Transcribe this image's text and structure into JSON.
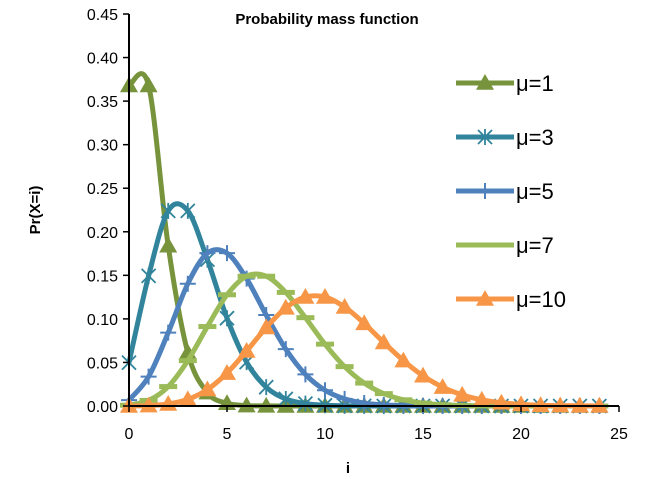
{
  "chart_data": {
    "type": "line",
    "title": "Probability mass function",
    "xlabel": "i",
    "ylabel": "Pr(X=i)",
    "xlim": [
      0,
      25
    ],
    "ylim": [
      0,
      0.45
    ],
    "xticks": [
      "0",
      "5",
      "10",
      "15",
      "20",
      "25"
    ],
    "yticks": [
      "0.00",
      "0.05",
      "0.10",
      "0.15",
      "0.20",
      "0.25",
      "0.30",
      "0.35",
      "0.40",
      "0.45"
    ],
    "x": [
      0,
      1,
      2,
      3,
      4,
      5,
      6,
      7,
      8,
      9,
      10,
      11,
      12,
      13,
      14,
      15,
      16,
      17,
      18,
      19,
      20,
      21,
      22,
      23,
      24
    ],
    "grid": false,
    "legend_position": "right",
    "series": [
      {
        "name": "μ=1",
        "color": "#77933C",
        "marker": "triangle",
        "values": [
          0.3679,
          0.3679,
          0.1839,
          0.0613,
          0.0153,
          0.0031,
          0.0005,
          0.0001,
          0,
          0,
          0,
          0,
          0,
          0,
          0,
          0,
          0,
          0,
          0,
          0,
          0,
          0,
          0,
          0,
          0
        ]
      },
      {
        "name": "μ=3",
        "color": "#31849B",
        "marker": "asterisk",
        "values": [
          0.0498,
          0.1494,
          0.224,
          0.224,
          0.168,
          0.1008,
          0.0504,
          0.0216,
          0.0081,
          0.0027,
          0.0008,
          0.0002,
          0.0001,
          0,
          0,
          0,
          0,
          0,
          0,
          0,
          0,
          0,
          0,
          0,
          0
        ]
      },
      {
        "name": "μ=5",
        "color": "#4F81BD",
        "marker": "plus",
        "values": [
          0.0067,
          0.0337,
          0.0842,
          0.1404,
          0.1755,
          0.1755,
          0.1462,
          0.1044,
          0.0653,
          0.0363,
          0.0181,
          0.0082,
          0.0034,
          0.0013,
          0.0005,
          0.0002,
          0,
          0,
          0,
          0,
          0,
          0,
          0,
          0,
          0
        ]
      },
      {
        "name": "μ=7",
        "color": "#9BBB59",
        "marker": "dash",
        "values": [
          0.0009,
          0.0064,
          0.0223,
          0.0521,
          0.0912,
          0.1277,
          0.149,
          0.149,
          0.1304,
          0.1014,
          0.071,
          0.0452,
          0.0263,
          0.0142,
          0.0071,
          0.0033,
          0.0014,
          0.0006,
          0.0002,
          0.0001,
          0,
          0,
          0,
          0,
          0
        ]
      },
      {
        "name": "μ=10",
        "color": "#F79646",
        "marker": "triangle",
        "values": [
          0,
          0.0005,
          0.0023,
          0.0076,
          0.0189,
          0.0378,
          0.0631,
          0.0901,
          0.1126,
          0.1251,
          0.1251,
          0.1137,
          0.0948,
          0.0729,
          0.0521,
          0.0347,
          0.0217,
          0.0128,
          0.0071,
          0.0037,
          0.0019,
          0.0009,
          0.0004,
          0.0002,
          0.0001
        ]
      }
    ]
  }
}
